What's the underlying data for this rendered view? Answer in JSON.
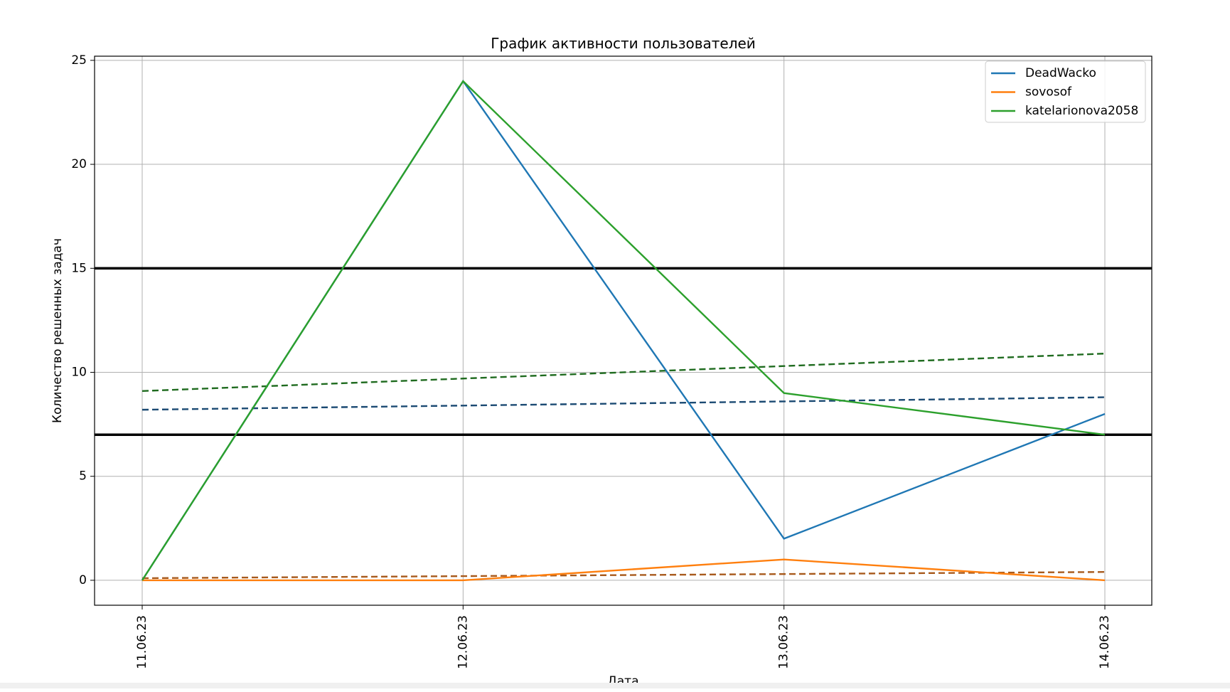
{
  "chart_data": {
    "type": "line",
    "title": "График активности пользователей",
    "xlabel": "Дата",
    "ylabel": "Количество решенных задач",
    "categories": [
      "11.06.23",
      "12.06.23",
      "13.06.23",
      "14.06.23"
    ],
    "yticks": [
      0,
      5,
      10,
      15,
      20,
      25
    ],
    "ylim": [
      -1.2,
      25.2
    ],
    "grid": true,
    "legend_position": "top-right",
    "series": [
      {
        "name": "DeadWacko",
        "color": "#1f77b4",
        "values": [
          0,
          24,
          2,
          8
        ],
        "trend": [
          8.2,
          8.4,
          8.6,
          8.8
        ],
        "trend_color": "#1b4a73"
      },
      {
        "name": "sovosof",
        "color": "#ff7f0e",
        "values": [
          0,
          0,
          1,
          0
        ],
        "trend": [
          0.1,
          0.2,
          0.3,
          0.4
        ],
        "trend_color": "#a85a1c"
      },
      {
        "name": "katelarionova2058",
        "color": "#2ca02c",
        "values": [
          0,
          24,
          9,
          7
        ],
        "trend": [
          9.1,
          9.7,
          10.3,
          10.9
        ],
        "trend_color": "#1f6b1f"
      }
    ],
    "reference_lines": [
      {
        "y": 15,
        "color": "#000000"
      },
      {
        "y": 7,
        "color": "#000000"
      }
    ]
  }
}
